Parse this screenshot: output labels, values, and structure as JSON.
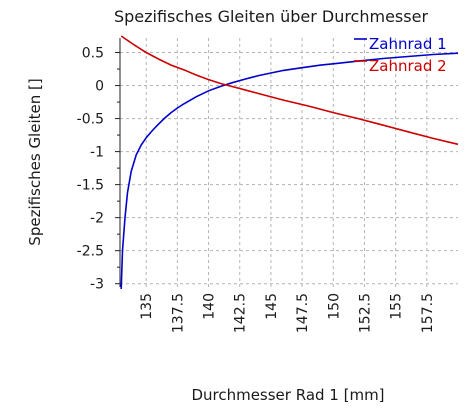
{
  "chart_data": {
    "type": "line",
    "title": "Spezifisches Gleiten über Durchmesser",
    "xlabel": "Durchmesser Rad 1 [mm]",
    "ylabel": "Spezifisches Gleiten []",
    "xlim": [
      132.9,
      160
    ],
    "ylim": [
      -3.05,
      0.72
    ],
    "x_ticks": [
      {
        "value": 135,
        "label": "135"
      },
      {
        "value": 137.5,
        "label": "137.5"
      },
      {
        "value": 140,
        "label": "140"
      },
      {
        "value": 142.5,
        "label": "142.5"
      },
      {
        "value": 145,
        "label": "145"
      },
      {
        "value": 147.5,
        "label": "147.5"
      },
      {
        "value": 150,
        "label": "150"
      },
      {
        "value": 152.5,
        "label": "152.5"
      },
      {
        "value": 155,
        "label": "155"
      },
      {
        "value": 157.5,
        "label": "157.5"
      }
    ],
    "y_ticks": [
      {
        "value": 0.5,
        "label": "0.5"
      },
      {
        "value": 0,
        "label": "0"
      },
      {
        "value": -0.5,
        "label": "-0.5"
      },
      {
        "value": -1,
        "label": "-1"
      },
      {
        "value": -1.5,
        "label": "-1.5"
      },
      {
        "value": -2,
        "label": "-2"
      },
      {
        "value": -2.5,
        "label": "-2.5"
      },
      {
        "value": -3,
        "label": "-3"
      }
    ],
    "grid": true,
    "legend_position": "top-right",
    "series": [
      {
        "name": "Zahnrad 1",
        "color": "#0000cc",
        "x": [
          133.0,
          133.1,
          133.3,
          133.5,
          133.8,
          134.2,
          134.6,
          135.0,
          135.5,
          136.0,
          136.5,
          137.0,
          137.5,
          138.0,
          139.0,
          140.0,
          141.0,
          142.0,
          143.0,
          144.0,
          145.0,
          146.0,
          147.5,
          149.0,
          150.0,
          152.0,
          154.0,
          156.0,
          158.0,
          160.0
        ],
        "y": [
          -3.08,
          -2.5,
          -2.0,
          -1.62,
          -1.3,
          -1.05,
          -0.9,
          -0.79,
          -0.68,
          -0.58,
          -0.49,
          -0.41,
          -0.34,
          -0.28,
          -0.17,
          -0.08,
          -0.01,
          0.05,
          0.1,
          0.15,
          0.19,
          0.23,
          0.27,
          0.31,
          0.33,
          0.37,
          0.41,
          0.44,
          0.47,
          0.49
        ]
      },
      {
        "name": "Zahnrad 2",
        "color": "#cc0000",
        "x": [
          133.0,
          134.0,
          135.0,
          136.0,
          137.0,
          138.0,
          139.0,
          140.0,
          141.0,
          142.0,
          143.0,
          144.0,
          146.0,
          148.0,
          150.0,
          152.0,
          154.0,
          156.0,
          158.0,
          160.0
        ],
        "y": [
          0.75,
          0.62,
          0.5,
          0.4,
          0.31,
          0.24,
          0.16,
          0.09,
          0.03,
          -0.02,
          -0.07,
          -0.12,
          -0.22,
          -0.31,
          -0.41,
          -0.5,
          -0.6,
          -0.7,
          -0.8,
          -0.89
        ]
      }
    ]
  }
}
